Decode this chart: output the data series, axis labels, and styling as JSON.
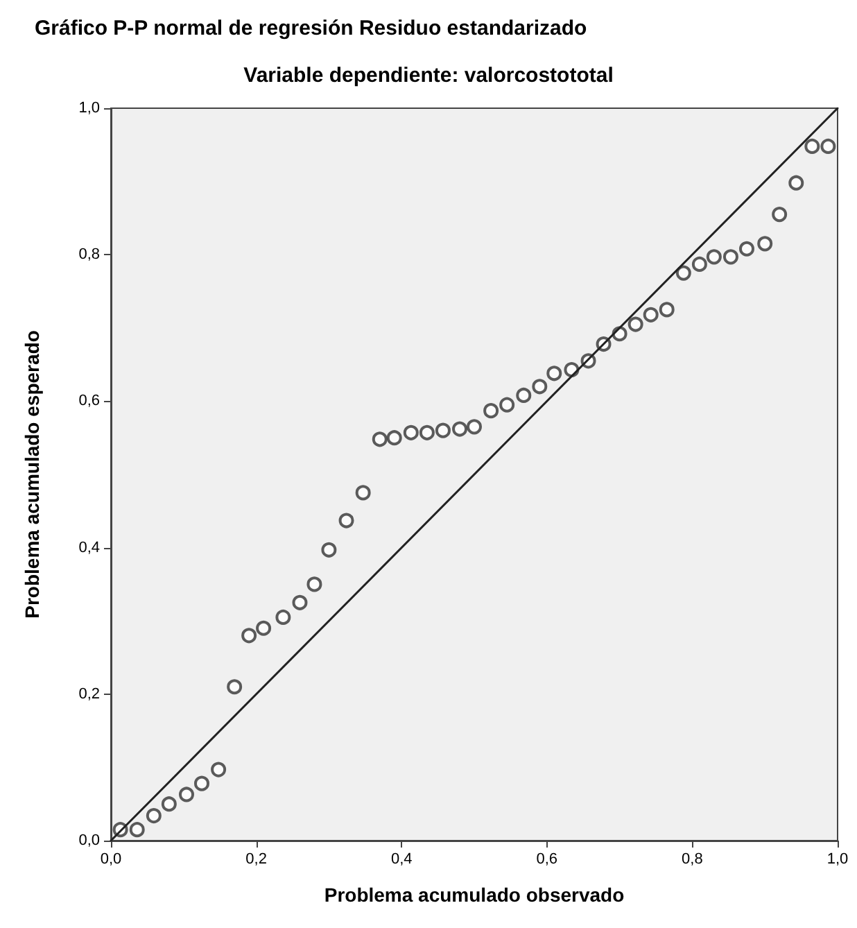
{
  "chart_data": {
    "type": "scatter",
    "title": "Gráfico P-P normal de regresión Residuo estandarizado",
    "subtitle": "Variable dependiente: valorcostototal",
    "xlabel": "Problema acumulado observado",
    "ylabel": "Problema acumulado esperado",
    "xlim": [
      0,
      1
    ],
    "ylim": [
      0,
      1
    ],
    "xticks": [
      {
        "value": 0,
        "label": "0,0"
      },
      {
        "value": 0.2,
        "label": "0,2"
      },
      {
        "value": 0.4,
        "label": "0,4"
      },
      {
        "value": 0.6,
        "label": "0,6"
      },
      {
        "value": 0.8,
        "label": "0,8"
      },
      {
        "value": 1,
        "label": "1,0"
      }
    ],
    "yticks": [
      {
        "value": 0,
        "label": "0,0"
      },
      {
        "value": 0.2,
        "label": "0,2"
      },
      {
        "value": 0.4,
        "label": "0,4"
      },
      {
        "value": 0.6,
        "label": "0,6"
      },
      {
        "value": 0.8,
        "label": "0,8"
      },
      {
        "value": 1,
        "label": "1,0"
      }
    ],
    "grid": false,
    "marker": "circle",
    "series": [
      {
        "color": "#333333",
        "x": [
          0.013,
          0.036,
          0.059,
          0.08,
          0.104,
          0.125,
          0.148,
          0.17,
          0.19,
          0.21,
          0.237,
          0.26,
          0.28,
          0.3,
          0.324,
          0.347,
          0.37,
          0.39,
          0.413,
          0.435,
          0.457,
          0.48,
          0.5,
          0.523,
          0.545,
          0.568,
          0.59,
          0.61,
          0.634,
          0.657,
          0.678,
          0.7,
          0.722,
          0.743,
          0.765,
          0.788,
          0.81,
          0.83,
          0.853,
          0.875,
          0.9,
          0.92,
          0.943,
          0.965,
          0.987
        ],
        "values": [
          0.015,
          0.015,
          0.034,
          0.05,
          0.063,
          0.078,
          0.097,
          0.21,
          0.28,
          0.29,
          0.305,
          0.325,
          0.35,
          0.397,
          0.437,
          0.475,
          0.548,
          0.55,
          0.557,
          0.557,
          0.56,
          0.562,
          0.565,
          0.587,
          0.595,
          0.608,
          0.62,
          0.638,
          0.643,
          0.655,
          0.678,
          0.692,
          0.705,
          0.718,
          0.725,
          0.775,
          0.787,
          0.797,
          0.797,
          0.808,
          0.815,
          0.855,
          0.898,
          0.948,
          0.948
        ]
      },
      {
        "type": "line",
        "color": "#222222",
        "x": [
          0,
          1
        ],
        "values": [
          0,
          1
        ],
        "line_style": "solid",
        "marker": "none"
      }
    ]
  }
}
